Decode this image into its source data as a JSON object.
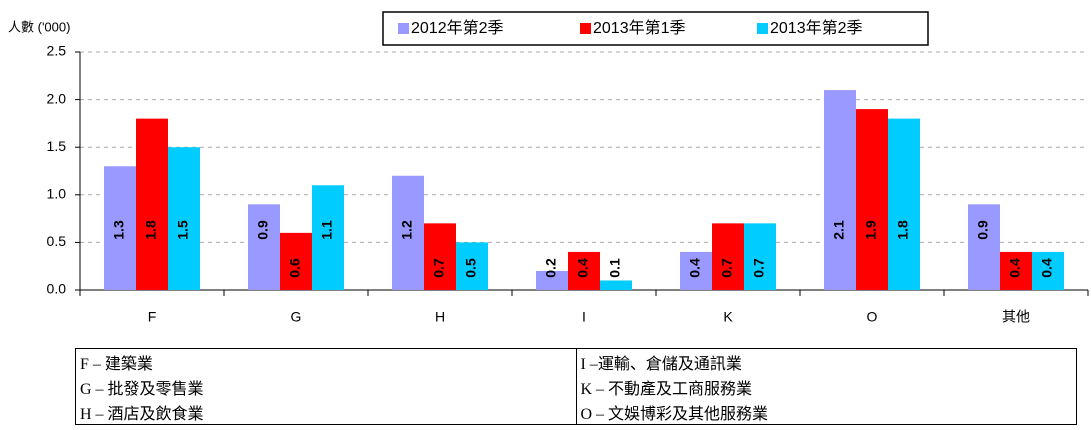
{
  "chart_data": {
    "type": "bar",
    "y_label": "人數 ('000)",
    "categories": [
      "F",
      "G",
      "H",
      "I",
      "K",
      "O",
      "其他"
    ],
    "series": [
      {
        "name": "2012年第2季",
        "color": "#9999ff",
        "values": [
          1.3,
          0.9,
          1.2,
          0.2,
          0.4,
          2.1,
          0.9
        ]
      },
      {
        "name": "2013年第1季",
        "color": "#ff0000",
        "values": [
          1.8,
          0.6,
          0.7,
          0.4,
          0.7,
          1.9,
          0.4
        ]
      },
      {
        "name": "2013年第2季",
        "color": "#00ccff",
        "values": [
          1.5,
          1.1,
          0.5,
          0.1,
          0.7,
          1.8,
          0.4
        ]
      }
    ],
    "ylim": [
      0,
      2.5
    ],
    "yticks": [
      {
        "value": 0,
        "label": "0.0"
      },
      {
        "value": 0.5,
        "label": "0.5"
      },
      {
        "value": 1,
        "label": "1.0"
      },
      {
        "value": 1.5,
        "label": "1.5"
      },
      {
        "value": 2,
        "label": "2.0"
      },
      {
        "value": 2.5,
        "label": "2.5"
      }
    ],
    "grid": true,
    "legend": "top"
  },
  "notes": {
    "rows": [
      [
        "F – 建築業",
        "I –運輸、倉儲及通訊業"
      ],
      [
        "G – 批發及零售業",
        "K – 不動產及工商服務業"
      ],
      [
        "H – 酒店及飲食業",
        "O – 文娛博彩及其他服務業"
      ]
    ]
  }
}
